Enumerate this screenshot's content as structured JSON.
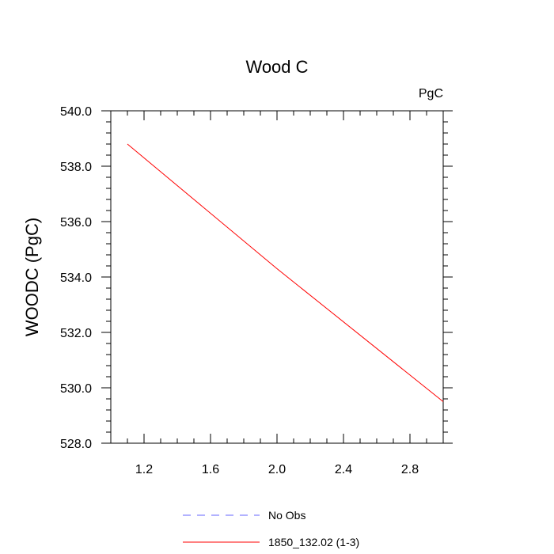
{
  "chart_data": {
    "type": "line",
    "title": "Wood C",
    "units_label": "PgC",
    "ylabel": "WOODC  (PgC)",
    "xlabel": "",
    "xlim": [
      1.0,
      3.0
    ],
    "ylim": [
      528.0,
      540.0
    ],
    "x_ticks": [
      1.2,
      1.6,
      2.0,
      2.4,
      2.8
    ],
    "x_tick_labels": [
      "1.2",
      "1.6",
      "2.0",
      "2.4",
      "2.8"
    ],
    "y_ticks": [
      528.0,
      530.0,
      532.0,
      534.0,
      536.0,
      538.0,
      540.0
    ],
    "y_tick_labels": [
      "528.0",
      "530.0",
      "532.0",
      "534.0",
      "536.0",
      "538.0",
      "540.0"
    ],
    "grid": false,
    "legend_position": "bottom",
    "series": [
      {
        "name": "No Obs",
        "color": "#6666ff",
        "dash": "dashed",
        "x": [],
        "y": []
      },
      {
        "name": "1850_132.02 (1-3)",
        "color": "#ff0000",
        "dash": "solid",
        "x": [
          1.1,
          2.0,
          3.0
        ],
        "y": [
          538.8,
          534.3,
          529.5
        ]
      }
    ]
  }
}
